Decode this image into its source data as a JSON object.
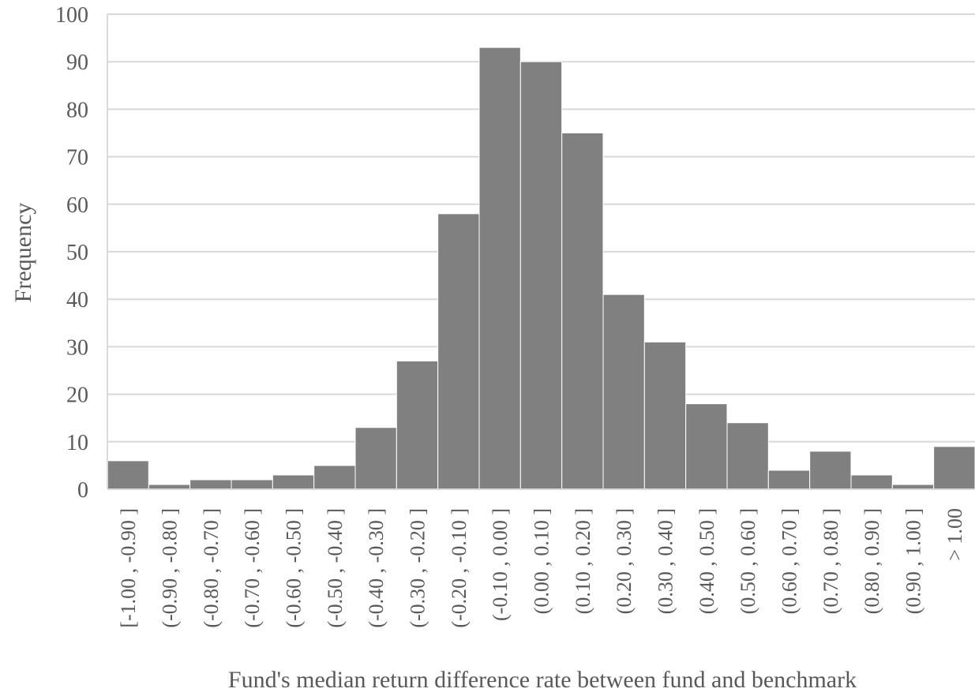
{
  "chart_data": {
    "type": "bar",
    "title": "",
    "xlabel": "Fund's median return difference rate between fund and benchmark",
    "ylabel": "Frequency",
    "ylim": [
      0,
      100
    ],
    "yticks": [
      "0",
      "10",
      "20",
      "30",
      "40",
      "50",
      "60",
      "70",
      "80",
      "90",
      "100"
    ],
    "grid": true,
    "legend": "none",
    "categories": [
      "[-1.00 , -0.90 ]",
      "(-0.90 , -0.80 ]",
      "(-0.80 , -0.70 ]",
      "(-0.70 , -0.60 ]",
      "(-0.60 , -0.50 ]",
      "(-0.50 , -0.40 ]",
      "(-0.40 , -0.30 ]",
      "(-0.30 , -0.20 ]",
      "(-0.20 , -0.10 ]",
      "(-0.10 , 0.00 ]",
      "(0.00 , 0.10 ]",
      "(0.10 , 0.20 ]",
      "(0.20 , 0.30 ]",
      "(0.30 , 0.40 ]",
      "(0.40 , 0.50 ]",
      "(0.50 , 0.60 ]",
      "(0.60 , 0.70 ]",
      "(0.70 , 0.80 ]",
      "(0.80 , 0.90 ]",
      "(0.90 , 1.00 ]",
      "> 1.00"
    ],
    "values": [
      6,
      1,
      2,
      2,
      3,
      5,
      13,
      27,
      58,
      93,
      90,
      75,
      41,
      31,
      18,
      14,
      4,
      8,
      3,
      1,
      9
    ],
    "colors": {
      "bar": "#808080",
      "bar_edge": "#ffffff",
      "grid": "#d9d9d9",
      "axis": "#d9d9d9",
      "text": "#595959"
    }
  }
}
